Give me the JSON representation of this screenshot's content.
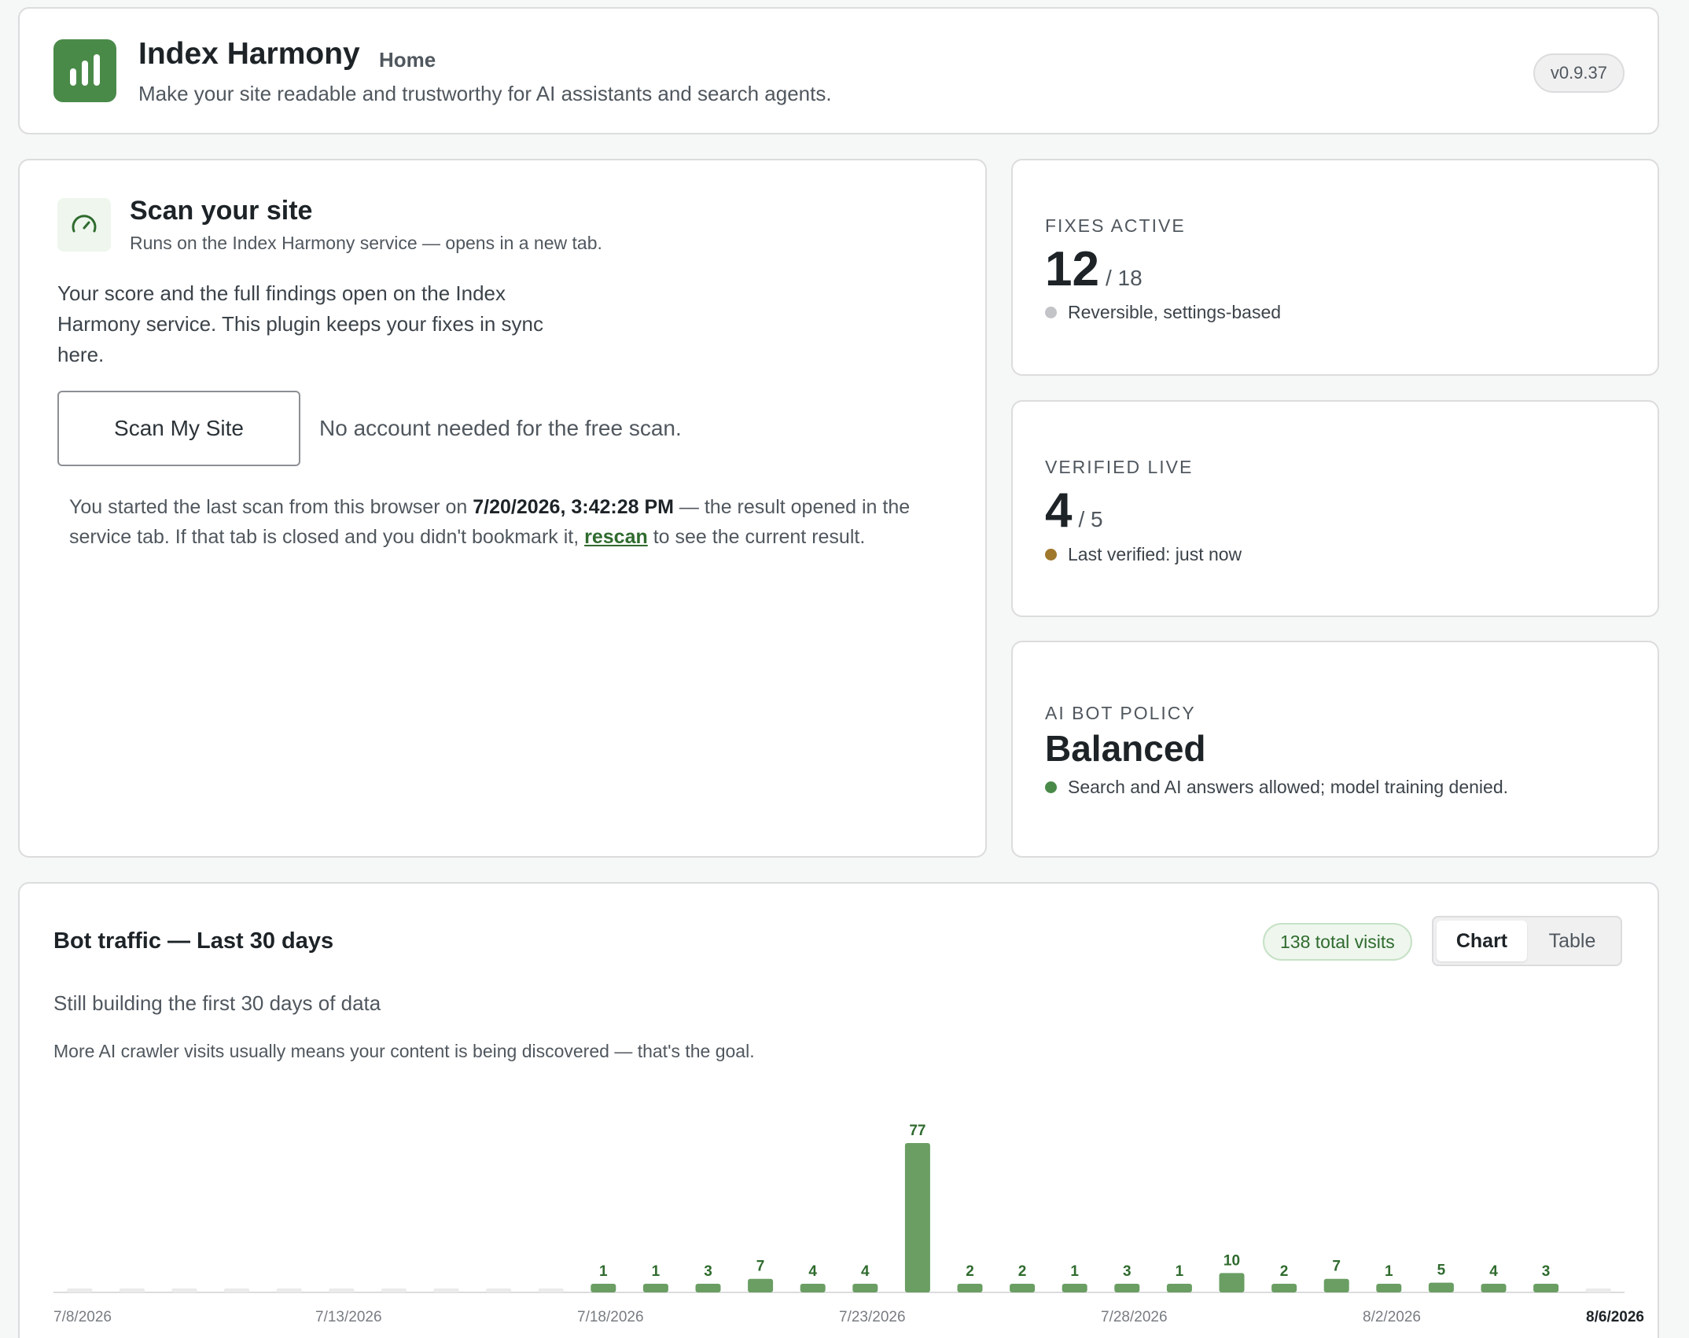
{
  "header": {
    "title": "Index Harmony",
    "crumb": "Home",
    "subtitle": "Make your site readable and trustworthy for AI assistants and search agents.",
    "version": "v0.9.37"
  },
  "scan": {
    "title": "Scan your site",
    "subtitle": "Runs on the Index Harmony service — opens in a new tab.",
    "description": "Your score and the full findings open on the Index Harmony service. This plugin keeps your fixes in sync here.",
    "button_label": "Scan My Site",
    "button_note": "No account needed for the free scan.",
    "last_scan_prefix": "You started the last scan from this browser on ",
    "last_scan_time": "7/20/2026, 3:42:28 PM",
    "last_scan_middle": " — the result opened in the service tab. If that tab is closed and you didn't bookmark it, ",
    "rescan_link": "rescan",
    "last_scan_suffix": " to see the current result."
  },
  "stats": {
    "fixes": {
      "label": "Fixes active",
      "value": "12",
      "total": "/ 18",
      "note": "Reversible, settings-based",
      "dot_color": "#c3c4c7"
    },
    "verified": {
      "label": "Verified live",
      "value": "4",
      "total": "/ 5",
      "note": "Last verified: just now",
      "dot_color": "#a0782c"
    },
    "policy": {
      "label": "AI bot policy",
      "value": "Balanced",
      "note": "Search and AI answers allowed; model training denied.",
      "dot_color": "#4a8a49"
    }
  },
  "traffic": {
    "title": "Bot traffic — Last 30 days",
    "total_pill": "138 total visits",
    "toggle": [
      "Chart",
      "Table"
    ],
    "active_toggle": "Chart",
    "status": "Still building the first 30 days of data",
    "note": "More AI crawler visits usually means your content is being discovered — that's the goal."
  },
  "colors": {
    "accent": "#4a8a49",
    "bar": "#6a9e63",
    "bar_empty": "#ebebec"
  },
  "chart_data": {
    "type": "bar",
    "categories": [
      "7/8/2026",
      "7/9/2026",
      "7/10/2026",
      "7/11/2026",
      "7/12/2026",
      "7/13/2026",
      "7/14/2026",
      "7/15/2026",
      "7/16/2026",
      "7/17/2026",
      "7/18/2026",
      "7/19/2026",
      "7/20/2026",
      "7/21/2026",
      "7/22/2026",
      "7/23/2026",
      "7/24/2026",
      "7/25/2026",
      "7/26/2026",
      "7/27/2026",
      "7/28/2026",
      "7/29/2026",
      "7/30/2026",
      "7/31/2026",
      "8/1/2026",
      "8/2/2026",
      "8/3/2026",
      "8/4/2026",
      "8/5/2026",
      "8/6/2026"
    ],
    "values": [
      0,
      0,
      0,
      0,
      0,
      0,
      0,
      0,
      0,
      0,
      1,
      1,
      3,
      7,
      4,
      4,
      77,
      2,
      2,
      1,
      3,
      1,
      10,
      2,
      7,
      1,
      5,
      4,
      3,
      0
    ],
    "tick_labels": [
      "7/8/2026",
      "7/13/2026",
      "7/18/2026",
      "7/23/2026",
      "7/28/2026",
      "8/2/2026",
      "8/6/2026"
    ],
    "highlight_tick": "8/6/2026",
    "grid": false
  }
}
